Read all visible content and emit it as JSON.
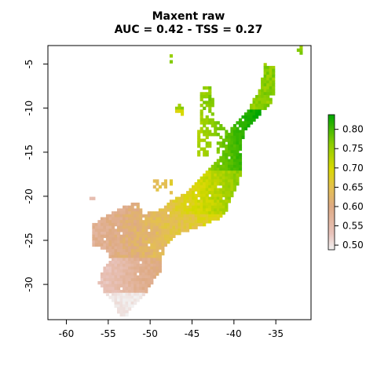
{
  "title": {
    "line1": "Maxent raw",
    "line2": "AUC = 0.42 - TSS = 0.27"
  },
  "chart_data": {
    "type": "heatmap",
    "x_ticks": [
      "-60",
      "-55",
      "-50",
      "-45",
      "-40",
      "-35"
    ],
    "x_tick_values": [
      -60,
      -55,
      -50,
      -45,
      -40,
      -35
    ],
    "y_ticks": [
      "-5",
      "-10",
      "-15",
      "-20",
      "-25",
      "-30"
    ],
    "y_tick_values": [
      -5,
      -10,
      -15,
      -20,
      -25,
      -30
    ],
    "xlim": [
      -62.2,
      -30.8
    ],
    "ylim": [
      -34,
      -2.9
    ],
    "legend": {
      "position": "right",
      "ticks": [
        "0.50",
        "0.55",
        "0.60",
        "0.65",
        "0.70",
        "0.75",
        "0.80"
      ],
      "tick_values": [
        0.5,
        0.55,
        0.6,
        0.65,
        0.7,
        0.75,
        0.8
      ],
      "range": [
        0.488,
        0.838
      ],
      "colors": [
        "#f2f2f2",
        "#e8c2ba",
        "#deaa84",
        "#e4c050",
        "#d9d900",
        "#8ccd00",
        "#00a600"
      ]
    },
    "value_range": [
      0.49,
      0.84
    ]
  }
}
